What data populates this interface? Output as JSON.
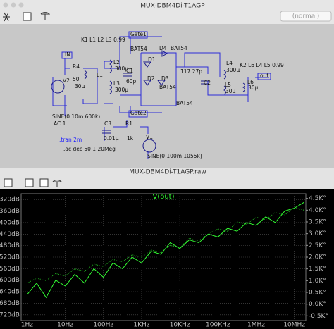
{
  "window": {
    "title": "MUX-DBM4Di-T1AGP",
    "mode": "(normal)"
  },
  "schematic": {
    "labels": [
      "K1 L1 L2 L3 0.99",
      "Gate1",
      "BAT54",
      "D4",
      "BAT54",
      "IN",
      "R4",
      "50",
      "L2",
      "300µ",
      "D1",
      "V2",
      "30µ",
      "L1",
      "C1",
      "60p",
      "117.27p",
      "K2 L6 L4 L5 0.99",
      "out",
      "L4",
      "300µ",
      "C2",
      "L3",
      "300µ",
      "D2",
      "D3",
      "BAT54",
      "L5",
      "30µ",
      "L6",
      "30µ",
      "BAT54",
      "SINE(0 10m 600k)",
      "AC 1",
      "Gate2",
      "C3",
      "R1",
      "0.01µ",
      "1k",
      "V1",
      "SINE(0 100m 1055k)"
    ],
    "directives": [
      ".tran 2m",
      ".ac dec 50 1 20Meg"
    ]
  },
  "waveform_window": {
    "title": "MUX-DBM4Di-T1AGP.raw"
  },
  "chart_data": {
    "type": "line",
    "title": "V(out)",
    "log_x": true,
    "x": [
      1,
      1.78,
      3.16,
      5.62,
      10,
      17.8,
      31.6,
      56.2,
      100,
      178,
      316,
      562,
      1000,
      1780,
      3160,
      5620,
      10000,
      17800,
      31600,
      56200,
      100000,
      178000,
      316000,
      562000,
      1000000,
      1780000,
      3160000,
      5620000,
      10000000,
      17800000
    ],
    "xlim": [
      0.7,
      20000000
    ],
    "xticks": [
      {
        "value": 1,
        "label": "1Hz"
      },
      {
        "value": 10,
        "label": "10Hz"
      },
      {
        "value": 100,
        "label": "100Hz"
      },
      {
        "value": 1000,
        "label": "1KHz"
      },
      {
        "value": 10000,
        "label": "10KHz"
      },
      {
        "value": 100000,
        "label": "100KHz"
      },
      {
        "value": 1000000,
        "label": "1MHz"
      },
      {
        "value": 10000000,
        "label": "10MHz"
      }
    ],
    "ylim": [
      -740,
      -300
    ],
    "yticks": [
      {
        "value": -320,
        "label": "-320dB"
      },
      {
        "value": -360,
        "label": "-360dB"
      },
      {
        "value": -400,
        "label": "-400dB"
      },
      {
        "value": -440,
        "label": "-440dB"
      },
      {
        "value": -480,
        "label": "-480dB"
      },
      {
        "value": -520,
        "label": "-520dB"
      },
      {
        "value": -560,
        "label": "-560dB"
      },
      {
        "value": -600,
        "label": "-600dB"
      },
      {
        "value": -640,
        "label": "-640dB"
      },
      {
        "value": -680,
        "label": "-680dB"
      },
      {
        "value": -720,
        "label": "-720dB"
      }
    ],
    "y2lim": [
      -700,
      4700
    ],
    "y2ticks": [
      {
        "value": 4500,
        "label": "4.5K°"
      },
      {
        "value": 4000,
        "label": "4.0K°"
      },
      {
        "value": 3500,
        "label": "3.5K°"
      },
      {
        "value": 3000,
        "label": "3.0K°"
      },
      {
        "value": 2500,
        "label": "2.5K°"
      },
      {
        "value": 2000,
        "label": "2.0K°"
      },
      {
        "value": 1500,
        "label": "1.5K°"
      },
      {
        "value": 1000,
        "label": "1.0K°"
      },
      {
        "value": 500,
        "label": "0.5K°"
      },
      {
        "value": 0,
        "label": "0.0K°"
      },
      {
        "value": -500,
        "label": "-0.5K°"
      }
    ],
    "grid": true,
    "series": [
      {
        "color": "#33ff33",
        "style": "solid",
        "values": [
          -650,
          -610,
          -660,
          -600,
          -620,
          -580,
          -610,
          -560,
          -590,
          -540,
          -560,
          -520,
          -540,
          -500,
          -510,
          -470,
          -490,
          -460,
          -470,
          -440,
          -450,
          -420,
          -430,
          -400,
          -410,
          -380,
          -400,
          -360,
          -350,
          -330
        ]
      },
      {
        "color": "#22bb22",
        "style": "dotted",
        "axis": "y2",
        "values": [
          900,
          1100,
          1000,
          1300,
          1200,
          1500,
          1400,
          1700,
          1600,
          1900,
          1800,
          2100,
          2000,
          2300,
          2200,
          2500,
          2400,
          2800,
          2700,
          3000,
          3200,
          3100,
          3500,
          3400,
          3700,
          3600,
          3900,
          3800,
          4100,
          4000
        ]
      }
    ]
  }
}
